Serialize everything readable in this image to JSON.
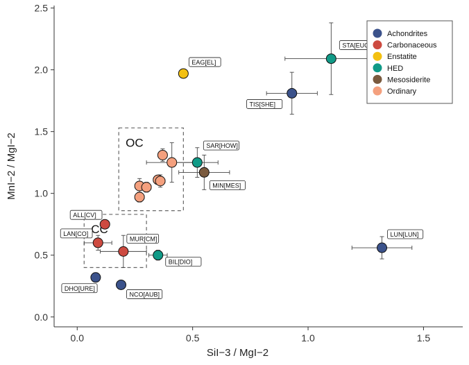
{
  "chart_data": {
    "type": "scatter",
    "xlabel": "SiI−3 / MgI−2",
    "ylabel": "MnI−2 / MgI−2",
    "xlim": [
      -0.1,
      1.67
    ],
    "ylim": [
      -0.08,
      2.52
    ],
    "x_ticks": [
      "0.0",
      "0.5",
      "1.0",
      "1.5"
    ],
    "x_tick_values": [
      0.0,
      0.5,
      1.0,
      1.5
    ],
    "y_ticks": [
      "0.0",
      "0.5",
      "1.0",
      "1.5",
      "2.0",
      "2.5"
    ],
    "y_tick_values": [
      0.0,
      0.5,
      1.0,
      1.5,
      2.0,
      2.5
    ],
    "grid": false,
    "legend_position": "top-right",
    "series": [
      {
        "name": "Achondrites",
        "color": "#3b528b",
        "points": [
          {
            "label": "STA[EUC]",
            "x": 1.1,
            "y": 2.09
          },
          {
            "label": "TIS[SHE]",
            "x": 0.93,
            "y": 1.81,
            "xerr": 0.11,
            "yerr": 0.17
          },
          {
            "label": "LUN[LUN]",
            "x": 1.32,
            "y": 0.56,
            "xerr": 0.13,
            "yerr": 0.09
          },
          {
            "label": "DHO[URE]",
            "x": 0.08,
            "y": 0.32
          },
          {
            "label": "NCO[AUB]",
            "x": 0.19,
            "y": 0.26
          }
        ]
      },
      {
        "name": "Carbonaceous",
        "color": "#cd4a40",
        "points": [
          {
            "label": "ALL[CV]",
            "x": 0.12,
            "y": 0.75
          },
          {
            "label": "LAN[CO]",
            "x": 0.09,
            "y": 0.6,
            "xerr": 0.06,
            "yerr": 0.06
          },
          {
            "label": "MUR[CM]",
            "x": 0.2,
            "y": 0.53,
            "xerr": 0.1,
            "yerr": 0.13
          }
        ]
      },
      {
        "name": "Enstatite",
        "color": "#f3c011",
        "points": [
          {
            "label": "EAG[EL]",
            "x": 0.46,
            "y": 1.97
          }
        ]
      },
      {
        "name": "HED",
        "color": "#109a87",
        "points": [
          {
            "label": "STA[EUC]",
            "x": 1.1,
            "y": 2.09,
            "xerr": 0.2,
            "yerr": 0.29
          },
          {
            "label": "SAR[HOW]",
            "x": 0.52,
            "y": 1.25,
            "xerr": 0.09,
            "yerr": 0.12
          },
          {
            "label": "BIL[DIO]",
            "x": 0.35,
            "y": 0.5,
            "xerr": 0.04,
            "yerr": 0.04
          }
        ]
      },
      {
        "name": "Mesosiderite",
        "color": "#7a5a3e",
        "points": [
          {
            "label": "MIN[MES]",
            "x": 0.55,
            "y": 1.17,
            "xerr": 0.11,
            "yerr": 0.14
          }
        ]
      },
      {
        "name": "Ordinary",
        "color": "#f4a07e",
        "points": [
          {
            "x": 0.37,
            "y": 1.31,
            "xerr": 0.02,
            "yerr": 0.05
          },
          {
            "x": 0.41,
            "y": 1.25,
            "xerr": 0.11,
            "yerr": 0.16
          },
          {
            "x": 0.35,
            "y": 1.11,
            "xerr": 0.02,
            "yerr": 0.03
          },
          {
            "x": 0.36,
            "y": 1.1,
            "xerr": 0.02,
            "yerr": 0.05
          },
          {
            "x": 0.27,
            "y": 1.06,
            "xerr": 0.02,
            "yerr": 0.06
          },
          {
            "x": 0.3,
            "y": 1.05,
            "xerr": 0.02,
            "yerr": 0.04
          },
          {
            "x": 0.27,
            "y": 0.97,
            "xerr": 0.02,
            "yerr": 0.04
          }
        ]
      }
    ],
    "plot_order": [
      {
        "series": "Achondrites",
        "label": "TIS[SHE]",
        "x": 0.93,
        "y": 1.81,
        "xerr": 0.11,
        "yerr": 0.17
      },
      {
        "series": "Achondrites",
        "label": "LUN[LUN]",
        "x": 1.32,
        "y": 0.56,
        "xerr": 0.13,
        "yerr": 0.09
      },
      {
        "series": "Achondrites",
        "label": "DHO[URE]",
        "x": 0.08,
        "y": 0.32
      },
      {
        "series": "Achondrites",
        "label": "NCO[AUB]",
        "x": 0.19,
        "y": 0.26
      },
      {
        "series": "Carbonaceous",
        "label": "ALL[CV]",
        "x": 0.12,
        "y": 0.75
      },
      {
        "series": "Carbonaceous",
        "label": "LAN[CO]",
        "x": 0.09,
        "y": 0.6,
        "xerr": 0.06,
        "yerr": 0.06
      },
      {
        "series": "Carbonaceous",
        "label": "MUR[CM]",
        "x": 0.2,
        "y": 0.53,
        "xerr": 0.1,
        "yerr": 0.13
      },
      {
        "series": "Enstatite",
        "label": "EAG[EL]",
        "x": 0.46,
        "y": 1.97
      },
      {
        "series": "HED",
        "label": "STA[EUC]",
        "x": 1.1,
        "y": 2.09,
        "xerr": 0.2,
        "yerr": 0.29
      },
      {
        "series": "HED",
        "label": "SAR[HOW]",
        "x": 0.52,
        "y": 1.25,
        "xerr": 0.09,
        "yerr": 0.12
      },
      {
        "series": "HED",
        "label": "BIL[DIO]",
        "x": 0.35,
        "y": 0.5,
        "xerr": 0.04,
        "yerr": 0.04
      },
      {
        "series": "Mesosiderite",
        "label": "MIN[MES]",
        "x": 0.55,
        "y": 1.17,
        "xerr": 0.11,
        "yerr": 0.14
      },
      {
        "series": "Ordinary",
        "x": 0.41,
        "y": 1.25,
        "xerr": 0.11,
        "yerr": 0.16
      },
      {
        "series": "Ordinary",
        "x": 0.37,
        "y": 1.31,
        "xerr": 0.02,
        "yerr": 0.05
      },
      {
        "series": "Ordinary",
        "x": 0.35,
        "y": 1.11,
        "xerr": 0.02,
        "yerr": 0.03
      },
      {
        "series": "Ordinary",
        "x": 0.36,
        "y": 1.1,
        "xerr": 0.02,
        "yerr": 0.05
      },
      {
        "series": "Ordinary",
        "x": 0.27,
        "y": 1.06,
        "xerr": 0.02,
        "yerr": 0.06
      },
      {
        "series": "Ordinary",
        "x": 0.3,
        "y": 1.05,
        "xerr": 0.02,
        "yerr": 0.04
      },
      {
        "series": "Ordinary",
        "x": 0.27,
        "y": 0.97,
        "xerr": 0.02,
        "yerr": 0.04
      }
    ],
    "regions": [
      {
        "label": "OC",
        "x_range": [
          0.18,
          0.46
        ],
        "y_range": [
          0.86,
          1.53
        ]
      },
      {
        "label": "CC",
        "x_range": [
          0.03,
          0.3
        ],
        "y_range": [
          0.4,
          0.83
        ]
      }
    ]
  }
}
